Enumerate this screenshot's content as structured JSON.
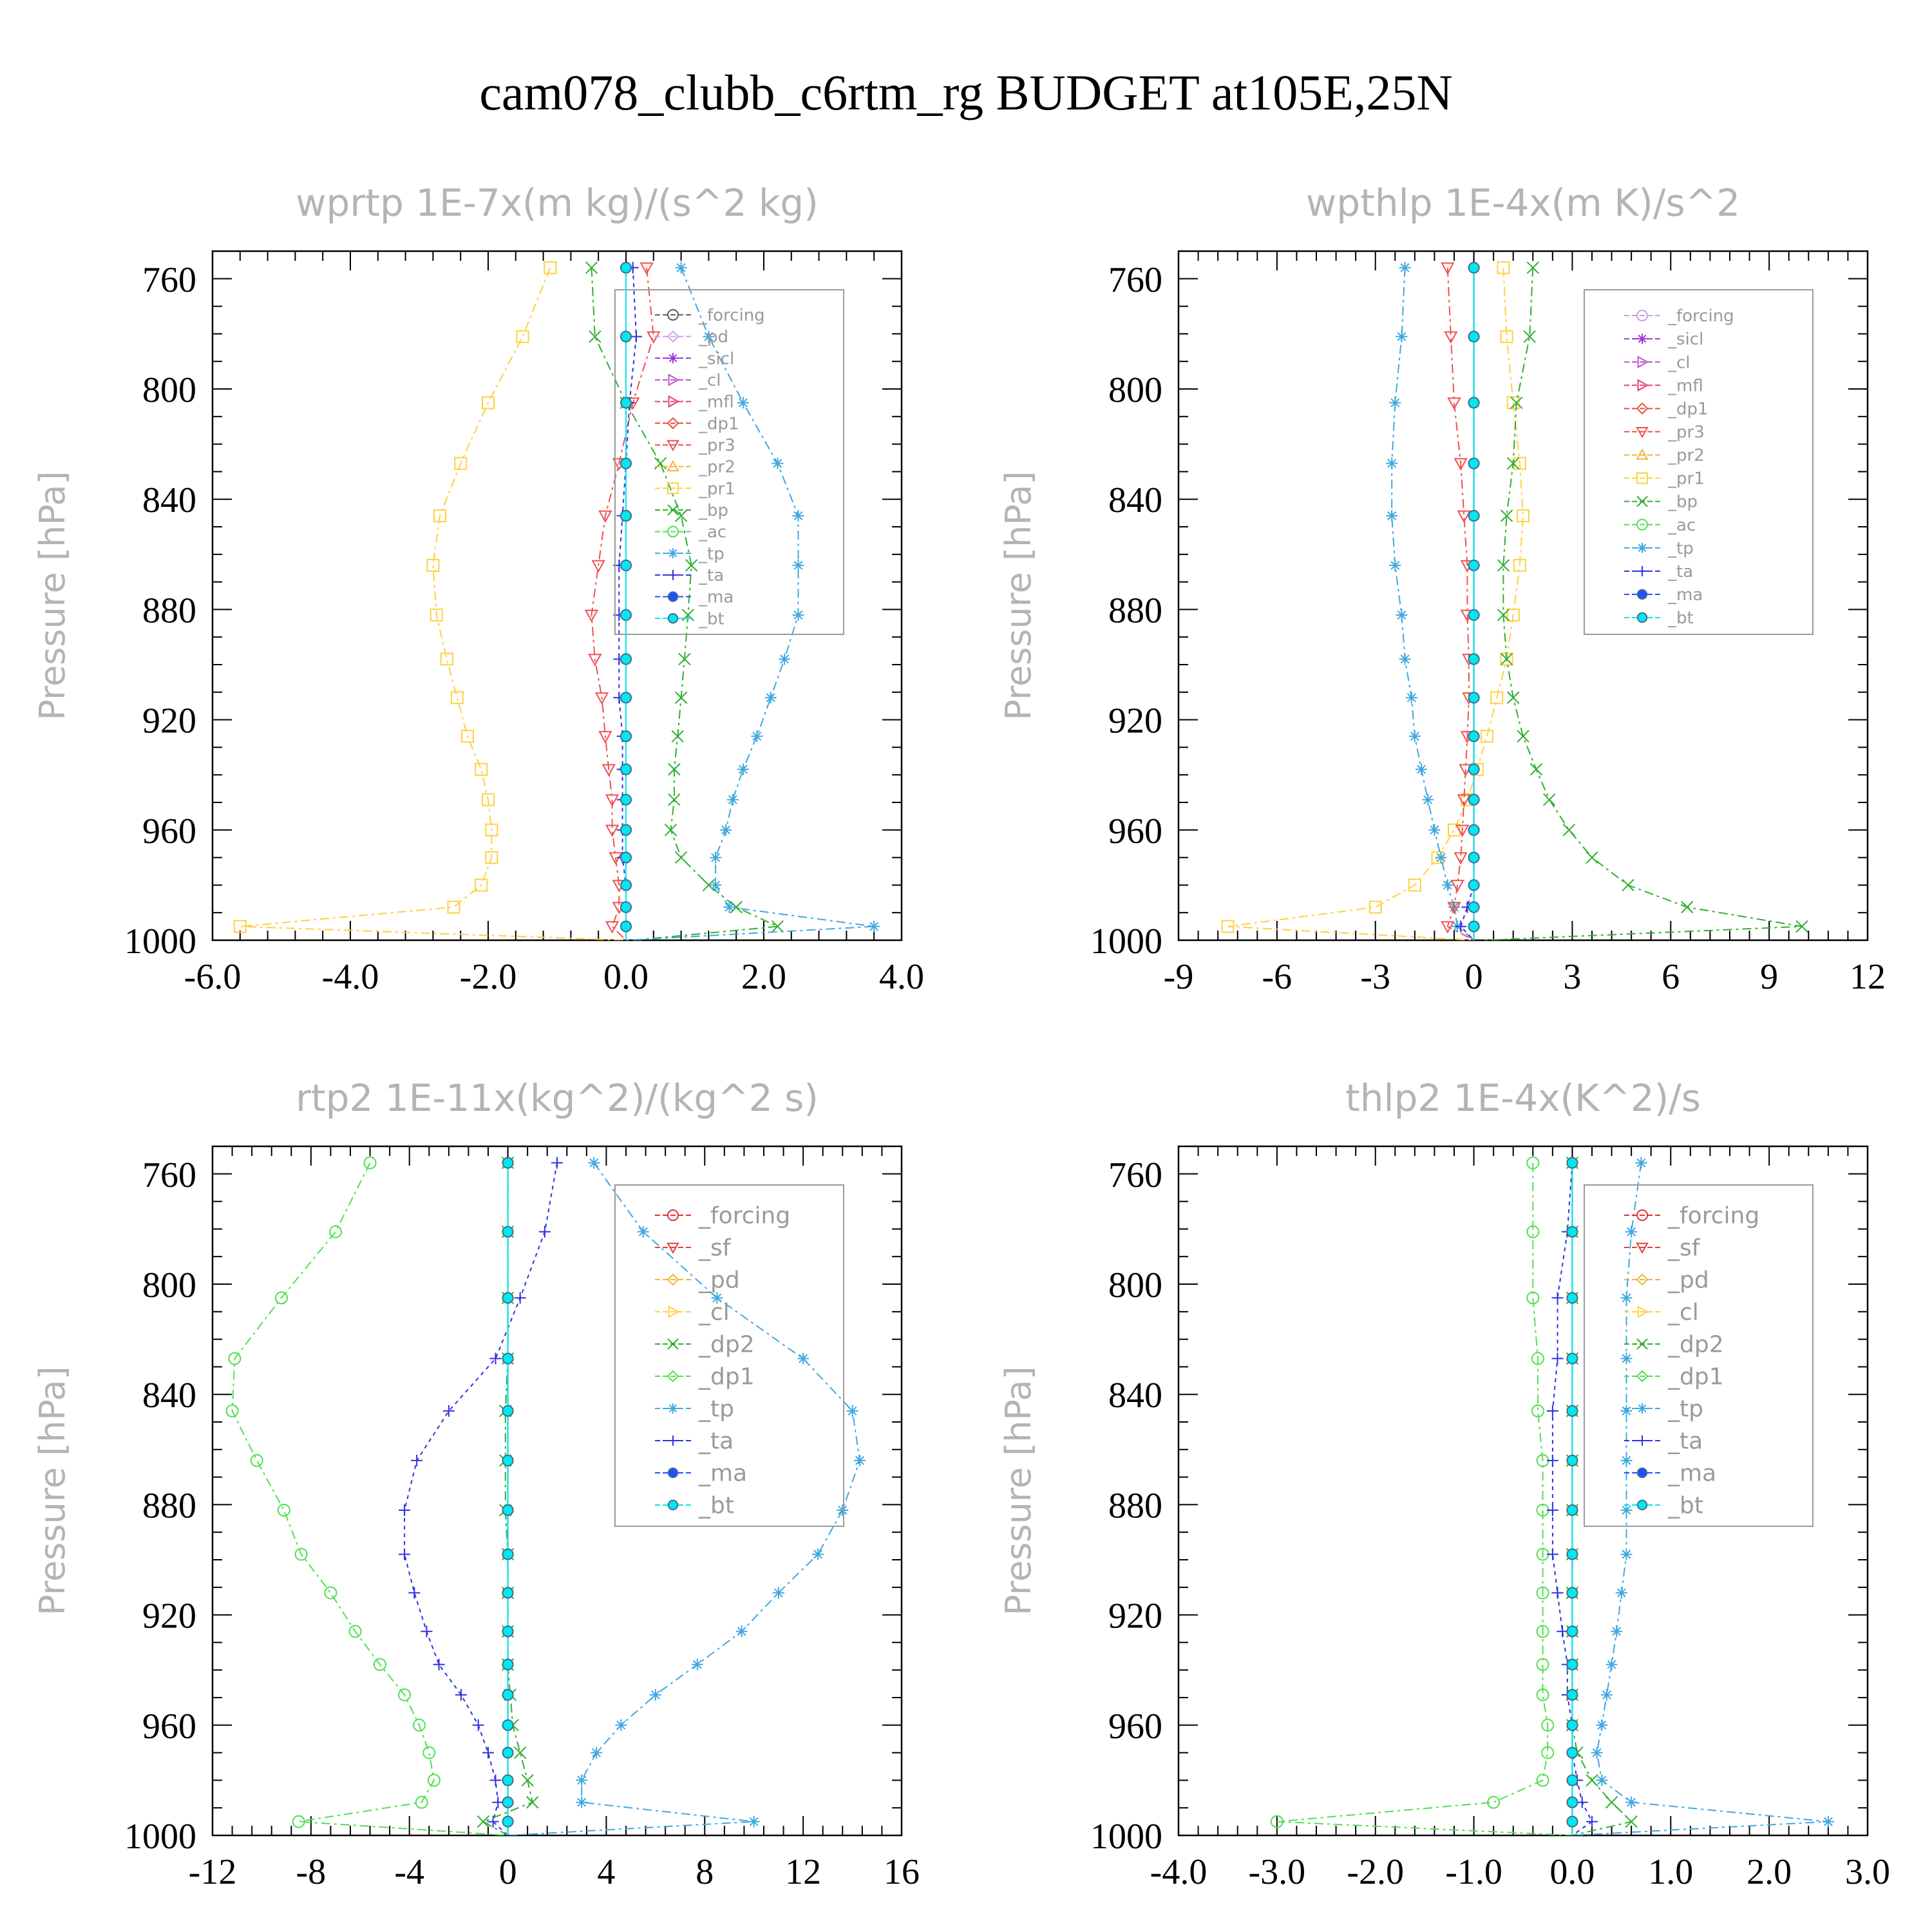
{
  "title": "cam078_clubb_c6rtm_rg  BUDGET at105E,25N",
  "colors": {
    "forcing": "#5a5a5a",
    "pd": "#c8a0e6",
    "sicl": "#9a3ad8",
    "cl": "#c050d0",
    "mfl": "#e0407a",
    "dp1": "#e8503c",
    "pr3": "#f05050",
    "pr2": "#f0b43c",
    "pr1": "#ffd040",
    "bp": "#30b030",
    "ac": "#50e050",
    "tp": "#40a8e0",
    "ta": "#3030e0",
    "ma": "#2050ff",
    "bt": "#00e8f0",
    "forcing_red": "#e03030",
    "sf": "#e04040",
    "pd_orange": "#f0b43c",
    "cl_yellow": "#ffd040",
    "dp2": "#30b030",
    "dp1_green": "#50e050"
  },
  "chart_data": [
    {
      "type": "line",
      "title": "wprtp   1E-7x(m kg)/(s^2 kg)",
      "ylabel": "Pressure [hPa]",
      "xlim": [
        -6,
        4
      ],
      "ylim": [
        1000,
        750
      ],
      "xticks": [
        -6,
        -4,
        -2,
        0,
        2,
        4
      ],
      "xtick_labels": [
        "-6.0",
        "-4.0",
        "-2.0",
        "0.0",
        "2.0",
        "4.0"
      ],
      "yticks": [
        760,
        800,
        840,
        880,
        920,
        960,
        1000
      ],
      "ytick_labels": [
        "760",
        "800",
        "840",
        "880",
        "920",
        "960",
        "1000"
      ],
      "legend": {
        "placement": "upper-right",
        "entries": [
          "_forcing",
          "_pd",
          "_sicl",
          "_cl",
          "_mfl",
          "_dp1",
          "_pr3",
          "_pr2",
          "_pr1",
          "_bp",
          "_ac",
          "_tp",
          "_ta",
          "_ma",
          "_bt"
        ]
      },
      "y": [
        756,
        781,
        805,
        827,
        846,
        864,
        882,
        898,
        912,
        926,
        938,
        949,
        960,
        970,
        980,
        988,
        995,
        1000
      ],
      "series": [
        {
          "name": "_pr1",
          "color": "#ffd040",
          "marker": "square",
          "values": [
            -1.1,
            -1.5,
            -2.0,
            -2.4,
            -2.7,
            -2.8,
            -2.75,
            -2.6,
            -2.45,
            -2.3,
            -2.1,
            -2.0,
            -1.95,
            -1.95,
            -2.1,
            -2.5,
            -5.6,
            0.0
          ]
        },
        {
          "name": "_bp",
          "color": "#30b030",
          "marker": "x",
          "values": [
            -0.5,
            -0.45,
            0.0,
            0.5,
            0.8,
            0.95,
            0.9,
            0.85,
            0.8,
            0.75,
            0.7,
            0.7,
            0.65,
            0.8,
            1.2,
            1.6,
            2.2,
            0.1
          ]
        },
        {
          "name": "_tp",
          "color": "#40a8e0",
          "marker": "star",
          "values": [
            0.8,
            1.2,
            1.7,
            2.2,
            2.5,
            2.5,
            2.5,
            2.3,
            2.1,
            1.9,
            1.7,
            1.55,
            1.45,
            1.3,
            1.3,
            1.5,
            3.6,
            0.0
          ]
        },
        {
          "name": "_pr3",
          "color": "#f05050",
          "marker": "triangle-down",
          "values": [
            0.3,
            0.4,
            0.1,
            -0.1,
            -0.3,
            -0.4,
            -0.5,
            -0.45,
            -0.35,
            -0.3,
            -0.25,
            -0.2,
            -0.2,
            -0.15,
            -0.1,
            -0.1,
            -0.2,
            0.0
          ]
        },
        {
          "name": "_ta",
          "color": "#3030e0",
          "marker": "plus",
          "values": [
            0.1,
            0.15,
            0.05,
            0.0,
            -0.05,
            -0.1,
            -0.1,
            -0.1,
            -0.1,
            -0.05,
            -0.05,
            -0.05,
            -0.05,
            -0.05,
            0.0,
            0.0,
            0.0,
            0.0
          ]
        },
        {
          "name": "_bt",
          "color": "#00e8f0",
          "marker": "dot",
          "values": [
            0.0,
            0.0,
            0.0,
            0.0,
            0.0,
            0.0,
            0.0,
            0.0,
            0.0,
            0.0,
            0.0,
            0.0,
            0.0,
            0.0,
            0.0,
            0.0,
            0.0,
            0.0
          ]
        }
      ]
    },
    {
      "type": "line",
      "title": "wpthlp   1E-4x(m K)/s^2",
      "ylabel": "Pressure [hPa]",
      "xlim": [
        -9,
        12
      ],
      "ylim": [
        1000,
        750
      ],
      "xticks": [
        -9,
        -6,
        -3,
        0,
        3,
        6,
        9,
        12
      ],
      "xtick_labels": [
        "-9",
        "-6",
        "-3",
        "0",
        "3",
        "6",
        "9",
        "12"
      ],
      "yticks": [
        760,
        800,
        840,
        880,
        920,
        960,
        1000
      ],
      "ytick_labels": [
        "760",
        "800",
        "840",
        "880",
        "920",
        "960",
        "1000"
      ],
      "legend": {
        "placement": "upper-right",
        "entries": [
          "_forcing",
          "_sicl",
          "_cl",
          "_mfl",
          "_dp1",
          "_pr3",
          "_pr2",
          "_pr1",
          "_bp",
          "_ac",
          "_tp",
          "_ta",
          "_ma",
          "_bt"
        ]
      },
      "y": [
        756,
        781,
        805,
        827,
        846,
        864,
        882,
        898,
        912,
        926,
        938,
        949,
        960,
        970,
        980,
        988,
        995,
        1000
      ],
      "series": [
        {
          "name": "_pr1",
          "color": "#ffd040",
          "marker": "square",
          "values": [
            0.9,
            1.0,
            1.2,
            1.4,
            1.5,
            1.4,
            1.2,
            1.0,
            0.7,
            0.4,
            0.1,
            -0.2,
            -0.6,
            -1.1,
            -1.8,
            -3.0,
            -7.5,
            0.0
          ]
        },
        {
          "name": "_bp",
          "color": "#30b030",
          "marker": "x",
          "values": [
            1.8,
            1.7,
            1.3,
            1.2,
            1.0,
            0.9,
            0.9,
            1.0,
            1.2,
            1.5,
            1.9,
            2.3,
            2.9,
            3.6,
            4.7,
            6.5,
            10.0,
            0.3
          ]
        },
        {
          "name": "_tp",
          "color": "#40a8e0",
          "marker": "star",
          "values": [
            -2.1,
            -2.2,
            -2.4,
            -2.5,
            -2.5,
            -2.4,
            -2.2,
            -2.1,
            -1.9,
            -1.8,
            -1.6,
            -1.4,
            -1.2,
            -1.0,
            -0.8,
            -0.6,
            -0.5,
            0.0
          ]
        },
        {
          "name": "_pr3",
          "color": "#f05050",
          "marker": "triangle-down",
          "values": [
            -0.8,
            -0.7,
            -0.6,
            -0.4,
            -0.3,
            -0.2,
            -0.2,
            -0.15,
            -0.15,
            -0.2,
            -0.25,
            -0.3,
            -0.35,
            -0.4,
            -0.5,
            -0.6,
            -0.8,
            0.0
          ]
        },
        {
          "name": "_ta",
          "color": "#3030e0",
          "marker": "plus",
          "values": [
            0.0,
            0.0,
            0.0,
            0.0,
            0.0,
            0.0,
            0.0,
            0.0,
            0.0,
            0.0,
            0.0,
            0.0,
            0.0,
            0.0,
            0.0,
            -0.2,
            -0.4,
            0.0
          ]
        },
        {
          "name": "_bt",
          "color": "#00e8f0",
          "marker": "dot",
          "values": [
            0.0,
            0.0,
            0.0,
            0.0,
            0.0,
            0.0,
            0.0,
            0.0,
            0.0,
            0.0,
            0.0,
            0.0,
            0.0,
            0.0,
            0.0,
            0.0,
            0.0,
            0.0
          ]
        }
      ]
    },
    {
      "type": "line",
      "title": "rtp2   1E-11x(kg^2)/(kg^2 s)",
      "ylabel": "Pressure [hPa]",
      "xlim": [
        -12,
        16
      ],
      "ylim": [
        1000,
        750
      ],
      "xticks": [
        -12,
        -8,
        -4,
        0,
        4,
        8,
        12,
        16
      ],
      "xtick_labels": [
        "-12",
        "-8",
        "-4",
        "0",
        "4",
        "8",
        "12",
        "16"
      ],
      "yticks": [
        760,
        800,
        840,
        880,
        920,
        960,
        1000
      ],
      "ytick_labels": [
        "760",
        "800",
        "840",
        "880",
        "920",
        "960",
        "1000"
      ],
      "legend": {
        "placement": "upper-right",
        "entries": [
          "_forcing",
          "_sf",
          "_pd",
          "_cl",
          "_dp2",
          "_dp1",
          "_tp",
          "_ta",
          "_ma",
          "_bt"
        ]
      },
      "y": [
        756,
        781,
        805,
        827,
        846,
        864,
        882,
        898,
        912,
        926,
        938,
        949,
        960,
        970,
        980,
        988,
        995,
        1000
      ],
      "series": [
        {
          "name": "_dp1",
          "color": "#50e050",
          "marker": "circle",
          "values": [
            -5.6,
            -7.0,
            -9.2,
            -11.1,
            -11.2,
            -10.2,
            -9.1,
            -8.4,
            -7.2,
            -6.2,
            -5.2,
            -4.2,
            -3.6,
            -3.2,
            -3.0,
            -3.5,
            -8.5,
            0.0
          ]
        },
        {
          "name": "_tp",
          "color": "#40a8e0",
          "marker": "star",
          "values": [
            3.5,
            5.5,
            8.5,
            12.0,
            14.0,
            14.3,
            13.6,
            12.6,
            11.0,
            9.5,
            7.7,
            6.0,
            4.6,
            3.6,
            3.0,
            3.0,
            10.0,
            0.0
          ]
        },
        {
          "name": "_ta",
          "color": "#3030e0",
          "marker": "plus",
          "values": [
            2.0,
            1.5,
            0.5,
            -0.5,
            -2.4,
            -3.7,
            -4.2,
            -4.2,
            -3.8,
            -3.3,
            -2.8,
            -1.9,
            -1.2,
            -0.8,
            -0.5,
            -0.4,
            -0.6,
            0.0
          ]
        },
        {
          "name": "_dp2",
          "color": "#30b030",
          "marker": "x",
          "values": [
            0.0,
            0.0,
            0.0,
            0.0,
            -0.1,
            -0.1,
            -0.1,
            0.0,
            0.0,
            0.0,
            0.0,
            0.1,
            0.2,
            0.5,
            0.8,
            1.0,
            -1.0,
            0.0
          ]
        },
        {
          "name": "_bt",
          "color": "#00e8f0",
          "marker": "dot",
          "values": [
            0.0,
            0.0,
            0.0,
            0.0,
            0.0,
            0.0,
            0.0,
            0.0,
            0.0,
            0.0,
            0.0,
            0.0,
            0.0,
            0.0,
            0.0,
            0.0,
            0.0,
            0.0
          ]
        }
      ]
    },
    {
      "type": "line",
      "title": "thlp2   1E-4x(K^2)/s",
      "ylabel": "Pressure [hPa]",
      "xlim": [
        -4,
        3
      ],
      "ylim": [
        1000,
        750
      ],
      "xticks": [
        -4,
        -3,
        -2,
        -1,
        0,
        1,
        2,
        3
      ],
      "xtick_labels": [
        "-4.0",
        "-3.0",
        "-2.0",
        "-1.0",
        "0.0",
        "1.0",
        "2.0",
        "3.0"
      ],
      "yticks": [
        760,
        800,
        840,
        880,
        920,
        960,
        1000
      ],
      "ytick_labels": [
        "760",
        "800",
        "840",
        "880",
        "920",
        "960",
        "1000"
      ],
      "legend": {
        "placement": "upper-right",
        "entries": [
          "_forcing",
          "_sf",
          "_pd",
          "_cl",
          "_dp2",
          "_dp1",
          "_tp",
          "_ta",
          "_ma",
          "_bt"
        ]
      },
      "y": [
        756,
        781,
        805,
        827,
        846,
        864,
        882,
        898,
        912,
        926,
        938,
        949,
        960,
        970,
        980,
        988,
        995,
        1000
      ],
      "series": [
        {
          "name": "_dp1",
          "color": "#50e050",
          "marker": "circle",
          "values": [
            -0.4,
            -0.4,
            -0.4,
            -0.35,
            -0.35,
            -0.3,
            -0.3,
            -0.3,
            -0.3,
            -0.3,
            -0.3,
            -0.3,
            -0.25,
            -0.25,
            -0.3,
            -0.8,
            -3.0,
            0.0
          ]
        },
        {
          "name": "_tp",
          "color": "#40a8e0",
          "marker": "star",
          "values": [
            0.7,
            0.6,
            0.55,
            0.55,
            0.55,
            0.55,
            0.55,
            0.55,
            0.5,
            0.45,
            0.4,
            0.35,
            0.3,
            0.25,
            0.3,
            0.6,
            2.6,
            0.0
          ]
        },
        {
          "name": "_ta",
          "color": "#3030e0",
          "marker": "plus",
          "values": [
            0.0,
            -0.05,
            -0.15,
            -0.15,
            -0.2,
            -0.2,
            -0.2,
            -0.2,
            -0.15,
            -0.1,
            -0.05,
            -0.05,
            0.0,
            0.0,
            0.05,
            0.1,
            0.2,
            0.0
          ]
        },
        {
          "name": "_dp2",
          "color": "#30b030",
          "marker": "x",
          "values": [
            0.0,
            0.0,
            0.0,
            0.0,
            0.0,
            0.0,
            0.0,
            0.0,
            0.0,
            0.0,
            0.0,
            0.0,
            0.0,
            0.05,
            0.2,
            0.4,
            0.6,
            0.0
          ]
        },
        {
          "name": "_bt",
          "color": "#00e8f0",
          "marker": "dot",
          "values": [
            0.0,
            0.0,
            0.0,
            0.0,
            0.0,
            0.0,
            0.0,
            0.0,
            0.0,
            0.0,
            0.0,
            0.0,
            0.0,
            0.0,
            0.0,
            0.0,
            0.0,
            0.0
          ]
        }
      ]
    }
  ]
}
